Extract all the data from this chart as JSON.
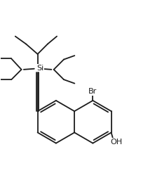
{
  "bg": "#ffffff",
  "lc": "#1c1c1c",
  "lw": 1.3,
  "fs": 7.5,
  "fw": 2.21,
  "fh": 2.73,
  "dpi": 100,
  "si_label": "Si",
  "br_label": "Br",
  "oh_label": "OH"
}
